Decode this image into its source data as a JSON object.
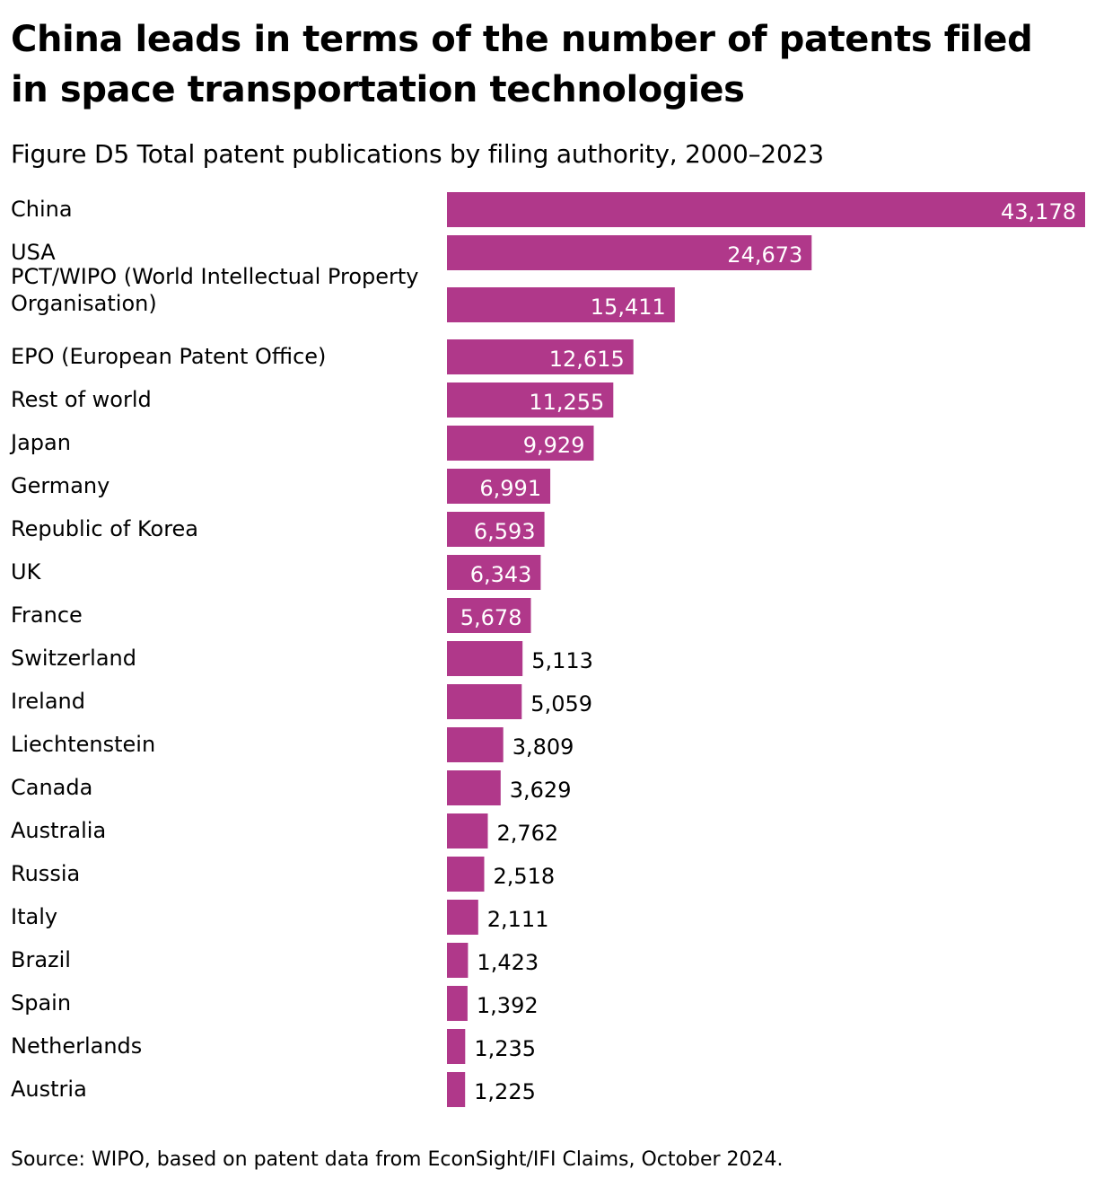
{
  "header": {
    "title": "China leads in terms of the number of patents filed in space transportation technologies",
    "subtitle": "Figure D5 Total patent publications by filing authority, 2000–2023"
  },
  "footer": {
    "source": "Source: WIPO, based on patent data from EconSight/IFI Claims, October 2024."
  },
  "colors": {
    "bar": "#b0388a",
    "label_inside": "#ffffff",
    "label_outside": "#000000"
  },
  "chart_data": {
    "type": "bar",
    "orientation": "horizontal",
    "title": "China leads in terms of the number of patents filed in space transportation technologies",
    "subtitle": "Figure D5 Total patent publications by filing authority, 2000–2023",
    "xlabel": "",
    "ylabel": "",
    "grid": false,
    "categories": [
      [
        "China"
      ],
      [
        "USA"
      ],
      [
        "PCT/WIPO (World Intellectual Property",
        "Organisation)"
      ],
      [
        "EPO (European Patent Office)"
      ],
      [
        "Rest of world"
      ],
      [
        "Japan"
      ],
      [
        "Germany"
      ],
      [
        "Republic of Korea"
      ],
      [
        "UK"
      ],
      [
        "France"
      ],
      [
        "Switzerland"
      ],
      [
        "Ireland"
      ],
      [
        "Liechtenstein"
      ],
      [
        "Canada"
      ],
      [
        "Australia"
      ],
      [
        "Russia"
      ],
      [
        "Italy"
      ],
      [
        "Brazil"
      ],
      [
        "Spain"
      ],
      [
        "Netherlands"
      ],
      [
        "Austria"
      ]
    ],
    "values": [
      43178,
      24673,
      15411,
      12615,
      11255,
      9929,
      6991,
      6593,
      6343,
      5678,
      5113,
      5059,
      3809,
      3629,
      2762,
      2518,
      2111,
      1423,
      1392,
      1235,
      1225
    ],
    "value_labels": [
      "43,178",
      "24,673",
      "15,411",
      "12,615",
      "11,255",
      "9,929",
      "6,991",
      "6,593",
      "6,343",
      "5,678",
      "5,113",
      "5,059",
      "3,809",
      "3,629",
      "2,762",
      "2,518",
      "2,111",
      "1,423",
      "1,392",
      "1,235",
      "1,225"
    ],
    "xlim": [
      0,
      43178
    ]
  }
}
